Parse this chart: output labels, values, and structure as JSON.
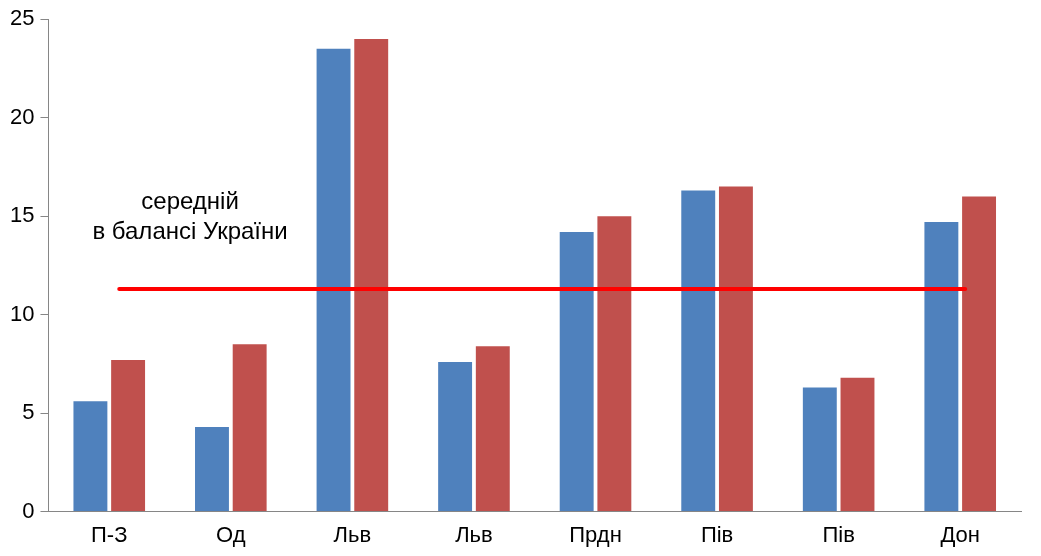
{
  "chart_data": {
    "type": "bar",
    "categories": [
      "П-З",
      "Од",
      "Льв",
      "Льв",
      "Прдн",
      "Пів",
      "Пів",
      "Дон"
    ],
    "series": [
      {
        "color": "#4f81bd",
        "values": [
          5.6,
          4.3,
          23.5,
          7.6,
          14.2,
          16.3,
          6.3,
          14.7
        ]
      },
      {
        "color": "#c0504d",
        "values": [
          7.7,
          8.5,
          24,
          8.4,
          15,
          16.5,
          6.8,
          16
        ]
      }
    ],
    "ylim": [
      0,
      25
    ],
    "yticks": [
      0,
      5,
      10,
      15,
      20,
      25
    ],
    "grid": false,
    "legend": false,
    "ref_lines": [
      {
        "axis": "y",
        "value": 11.3,
        "label": "середній\nв балансі України",
        "color": "#ff0000",
        "line_style": "solid"
      }
    ]
  }
}
